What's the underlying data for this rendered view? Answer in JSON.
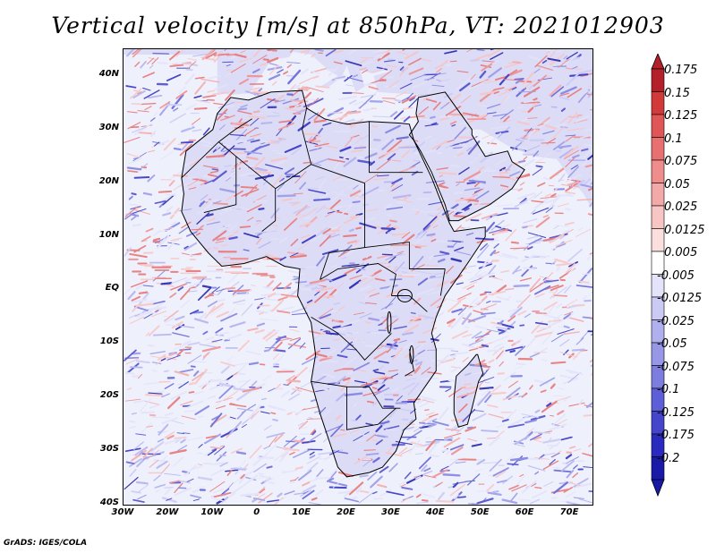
{
  "title": "Vertical velocity [m/s] at 850hPa, VT: 2021012903",
  "footer": "GrADS: IGES/COLA",
  "map": {
    "region": "Africa",
    "lat_labels": [
      "40N",
      "30N",
      "20N",
      "10N",
      "EQ",
      "10S",
      "20S",
      "30S",
      "40S"
    ],
    "lat_values": [
      40,
      30,
      20,
      10,
      0,
      -10,
      -20,
      -30,
      -40
    ],
    "lon_labels": [
      "30W",
      "20W",
      "10W",
      "0",
      "10E",
      "20E",
      "30E",
      "40E",
      "50E",
      "60E",
      "70E"
    ],
    "lon_values": [
      -30,
      -20,
      -10,
      0,
      10,
      20,
      30,
      40,
      50,
      60,
      70
    ],
    "extent": {
      "lon_min": -30,
      "lon_max": 75,
      "lat_min": -40,
      "lat_max": 45
    }
  },
  "colorbar": {
    "labels": [
      "0.175",
      "0.15",
      "0.125",
      "0.1",
      "0.075",
      "0.05",
      "0.025",
      "0.0125",
      "0.005",
      "-0.005",
      "-0.0125",
      "-0.025",
      "-0.05",
      "-0.075",
      "-0.1",
      "-0.125",
      "-0.175",
      "-0.2"
    ],
    "colors": [
      "#b3202a",
      "#d23a3a",
      "#e05555",
      "#e87070",
      "#ef8c8c",
      "#f4a9a9",
      "#f8c5c5",
      "#fbdede",
      "#ffffff",
      "#e3e3fa",
      "#cacaf5",
      "#b0b0ef",
      "#9797e8",
      "#7d7de0",
      "#5e5ed6",
      "#4545cc",
      "#2a2abf",
      "#1a1aa8"
    ]
  },
  "colors": {
    "background": "#ffffff",
    "ocean_base": "#eef0fb",
    "land_base": "#dcdcf6",
    "positive": "#e45454",
    "negative": "#6a6ae0"
  }
}
